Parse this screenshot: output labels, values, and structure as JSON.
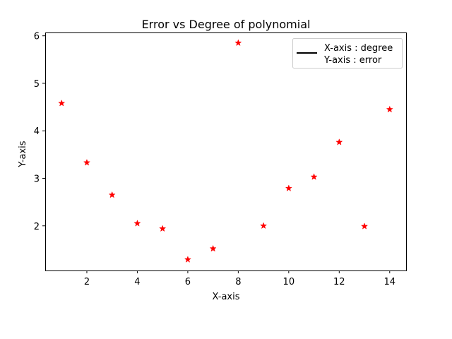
{
  "chart_data": {
    "type": "scatter",
    "title": "Error vs Degree of polynomial",
    "xlabel": "X-axis",
    "ylabel": "Y-axis",
    "xlim": [
      0.35,
      14.65
    ],
    "ylim": [
      1.06,
      6.07
    ],
    "xticks": [
      2,
      4,
      6,
      8,
      10,
      12,
      14
    ],
    "yticks": [
      2,
      3,
      4,
      5,
      6
    ],
    "grid": false,
    "legend_position": "top-right",
    "legend": [
      "X-axis : degree",
      "Y-axis : error"
    ],
    "marker_color": "#ff0000",
    "series": [
      {
        "x": [
          1,
          2,
          3,
          4,
          5,
          6,
          7,
          8,
          9,
          10,
          11,
          12,
          13,
          14
        ],
        "y": [
          4.58,
          3.33,
          2.65,
          2.05,
          1.94,
          1.29,
          1.52,
          5.85,
          2.0,
          2.79,
          3.03,
          3.76,
          1.99,
          4.45
        ]
      }
    ]
  }
}
